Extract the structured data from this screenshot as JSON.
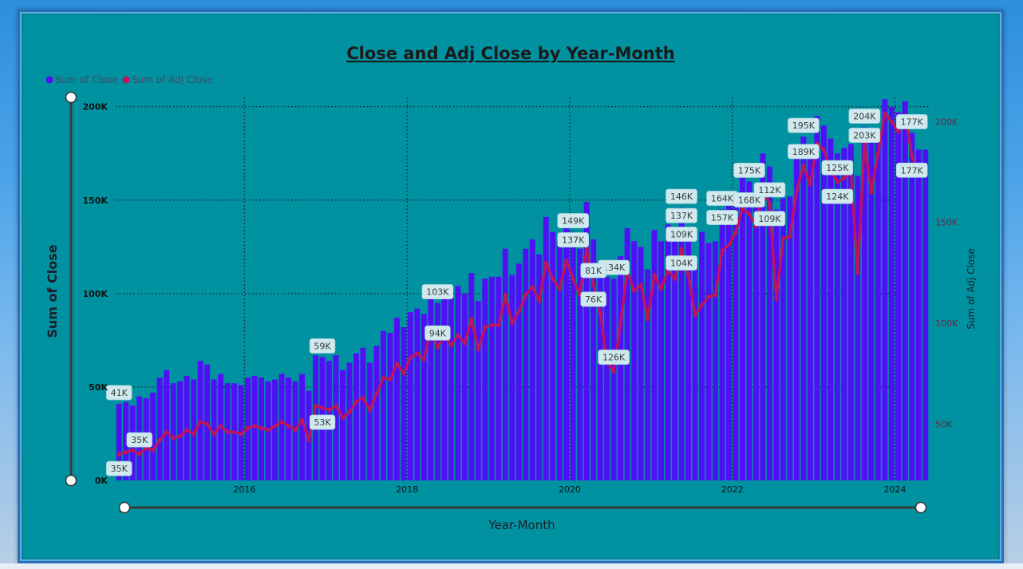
{
  "chart_data": {
    "type": "bar+line",
    "title": "Close and Adj Close by Year-Month",
    "xlabel": "Year-Month",
    "ylabel": "Sum of Close",
    "y2label": "Sum of Adj Close",
    "legend": [
      {
        "name": "Sum of Close",
        "color": "#5010f5"
      },
      {
        "name": "Sum of Adj Close",
        "color": "#c0145a"
      }
    ],
    "legend_position": "top-left",
    "x_ticks": [
      "2016",
      "2018",
      "2020",
      "2022",
      "2024"
    ],
    "y_ticks": [
      "0K",
      "50K",
      "100K",
      "150K",
      "200K"
    ],
    "y2_ticks": [
      "50K",
      "100K",
      "150K",
      "200K"
    ],
    "ylim": [
      0,
      205000
    ],
    "y2lim": [
      22000,
      212000
    ],
    "start_period": "2014-06",
    "end_period": "2024-03",
    "close": [
      41000,
      42000,
      40000,
      45000,
      44000,
      47000,
      55000,
      59000,
      52000,
      53000,
      56000,
      54000,
      64000,
      62000,
      54000,
      57000,
      52000,
      52000,
      51000,
      55000,
      56000,
      55000,
      53000,
      54000,
      57000,
      55000,
      53000,
      57000,
      48000,
      67000,
      66000,
      64000,
      67000,
      59000,
      63000,
      68000,
      71000,
      63000,
      72000,
      80000,
      79000,
      87000,
      82000,
      90000,
      92000,
      89000,
      104000,
      95000,
      103000,
      98000,
      104000,
      100000,
      111000,
      96000,
      108000,
      109000,
      109000,
      124000,
      110000,
      116000,
      124000,
      129000,
      121000,
      141000,
      133000,
      128000,
      142000,
      133000,
      124000,
      149000,
      129000,
      117000,
      109000,
      108000,
      120000,
      135000,
      128000,
      125000,
      113000,
      134000,
      128000,
      137000,
      133000,
      146000,
      132000,
      116000,
      133000,
      127000,
      128000,
      145000,
      147000,
      154000,
      164000,
      160000,
      155000,
      175000,
      168000,
      145000,
      151000,
      152000,
      173000,
      184000,
      176000,
      195000,
      190000,
      183000,
      175000,
      178000,
      180000,
      163000,
      189000,
      185000,
      182000,
      204000,
      200000,
      197000,
      203000,
      186000,
      177000,
      177000
    ],
    "adj_close": [
      35000,
      36000,
      37000,
      35000,
      38000,
      37000,
      42000,
      46000,
      43000,
      44000,
      47000,
      45000,
      51000,
      50000,
      45000,
      49000,
      46000,
      46000,
      45000,
      48000,
      49000,
      48000,
      47000,
      49000,
      51000,
      49000,
      47000,
      52000,
      42000,
      59000,
      58000,
      57000,
      59000,
      53000,
      56000,
      61000,
      63000,
      57000,
      65000,
      73000,
      72000,
      80000,
      75000,
      83000,
      85000,
      82000,
      97000,
      88000,
      94000,
      89000,
      94000,
      90000,
      102000,
      87000,
      98000,
      99000,
      99000,
      114000,
      100000,
      106000,
      114000,
      118000,
      111000,
      130000,
      122000,
      117000,
      131000,
      122000,
      114000,
      137000,
      119000,
      105000,
      81000,
      76000,
      100000,
      126000,
      116000,
      119000,
      102000,
      124000,
      117000,
      126000,
      122000,
      137000,
      124000,
      104000,
      109000,
      113000,
      114000,
      136000,
      139000,
      145000,
      157000,
      154000,
      148000,
      168000,
      159000,
      112000,
      142000,
      143000,
      166000,
      178000,
      169000,
      189000,
      186000,
      176000,
      170000,
      172000,
      175000,
      125000,
      189000,
      165000,
      184000,
      204000,
      200000,
      195000,
      203000,
      183000,
      174000,
      177000
    ],
    "labels_close": [
      {
        "period": "2014-06",
        "text": "41K"
      },
      {
        "period": "2016-12",
        "text": "59K"
      },
      {
        "period": "2018-05",
        "text": "103K"
      },
      {
        "period": "2020-01",
        "text": "149K"
      },
      {
        "period": "2020-01",
        "text": "137K",
        "slot": 2
      },
      {
        "period": "2020-07",
        "text": "134K"
      },
      {
        "period": "2021-05",
        "text": "146K"
      },
      {
        "period": "2021-05",
        "text": "137K",
        "slot": 2
      },
      {
        "period": "2021-11",
        "text": "164K"
      },
      {
        "period": "2021-11",
        "text": "157K",
        "slot": 2
      },
      {
        "period": "2022-03",
        "text": "175K"
      },
      {
        "period": "2022-11",
        "text": "195K"
      },
      {
        "period": "2023-08",
        "text": "204K"
      },
      {
        "period": "2023-08",
        "text": "203K",
        "slot": 2
      },
      {
        "period": "2024-03",
        "text": "177K"
      }
    ],
    "labels_adj": [
      {
        "period": "2014-06",
        "text": "35K",
        "where": "below"
      },
      {
        "period": "2014-09",
        "text": "35K",
        "where": "above"
      },
      {
        "period": "2016-12",
        "text": "53K",
        "where": "below"
      },
      {
        "period": "2018-05",
        "text": "94K",
        "where": "above"
      },
      {
        "period": "2020-07",
        "text": "126K",
        "where": "above"
      },
      {
        "period": "2020-04",
        "text": "81K",
        "where": "above"
      },
      {
        "period": "2020-04",
        "text": "76K",
        "where": "below"
      },
      {
        "period": "2021-05",
        "text": "109K",
        "where": "above"
      },
      {
        "period": "2021-05",
        "text": "104K",
        "where": "below"
      },
      {
        "period": "2022-03",
        "text": "168K",
        "where": "above"
      },
      {
        "period": "2022-06",
        "text": "112K",
        "where": "above"
      },
      {
        "period": "2022-06",
        "text": "109K",
        "where": "below"
      },
      {
        "period": "2022-11",
        "text": "189K",
        "where": "above"
      },
      {
        "period": "2023-04",
        "text": "125K",
        "where": "above"
      },
      {
        "period": "2023-04",
        "text": "124K",
        "where": "below"
      },
      {
        "period": "2024-03",
        "text": "177K",
        "where": "below"
      }
    ]
  }
}
